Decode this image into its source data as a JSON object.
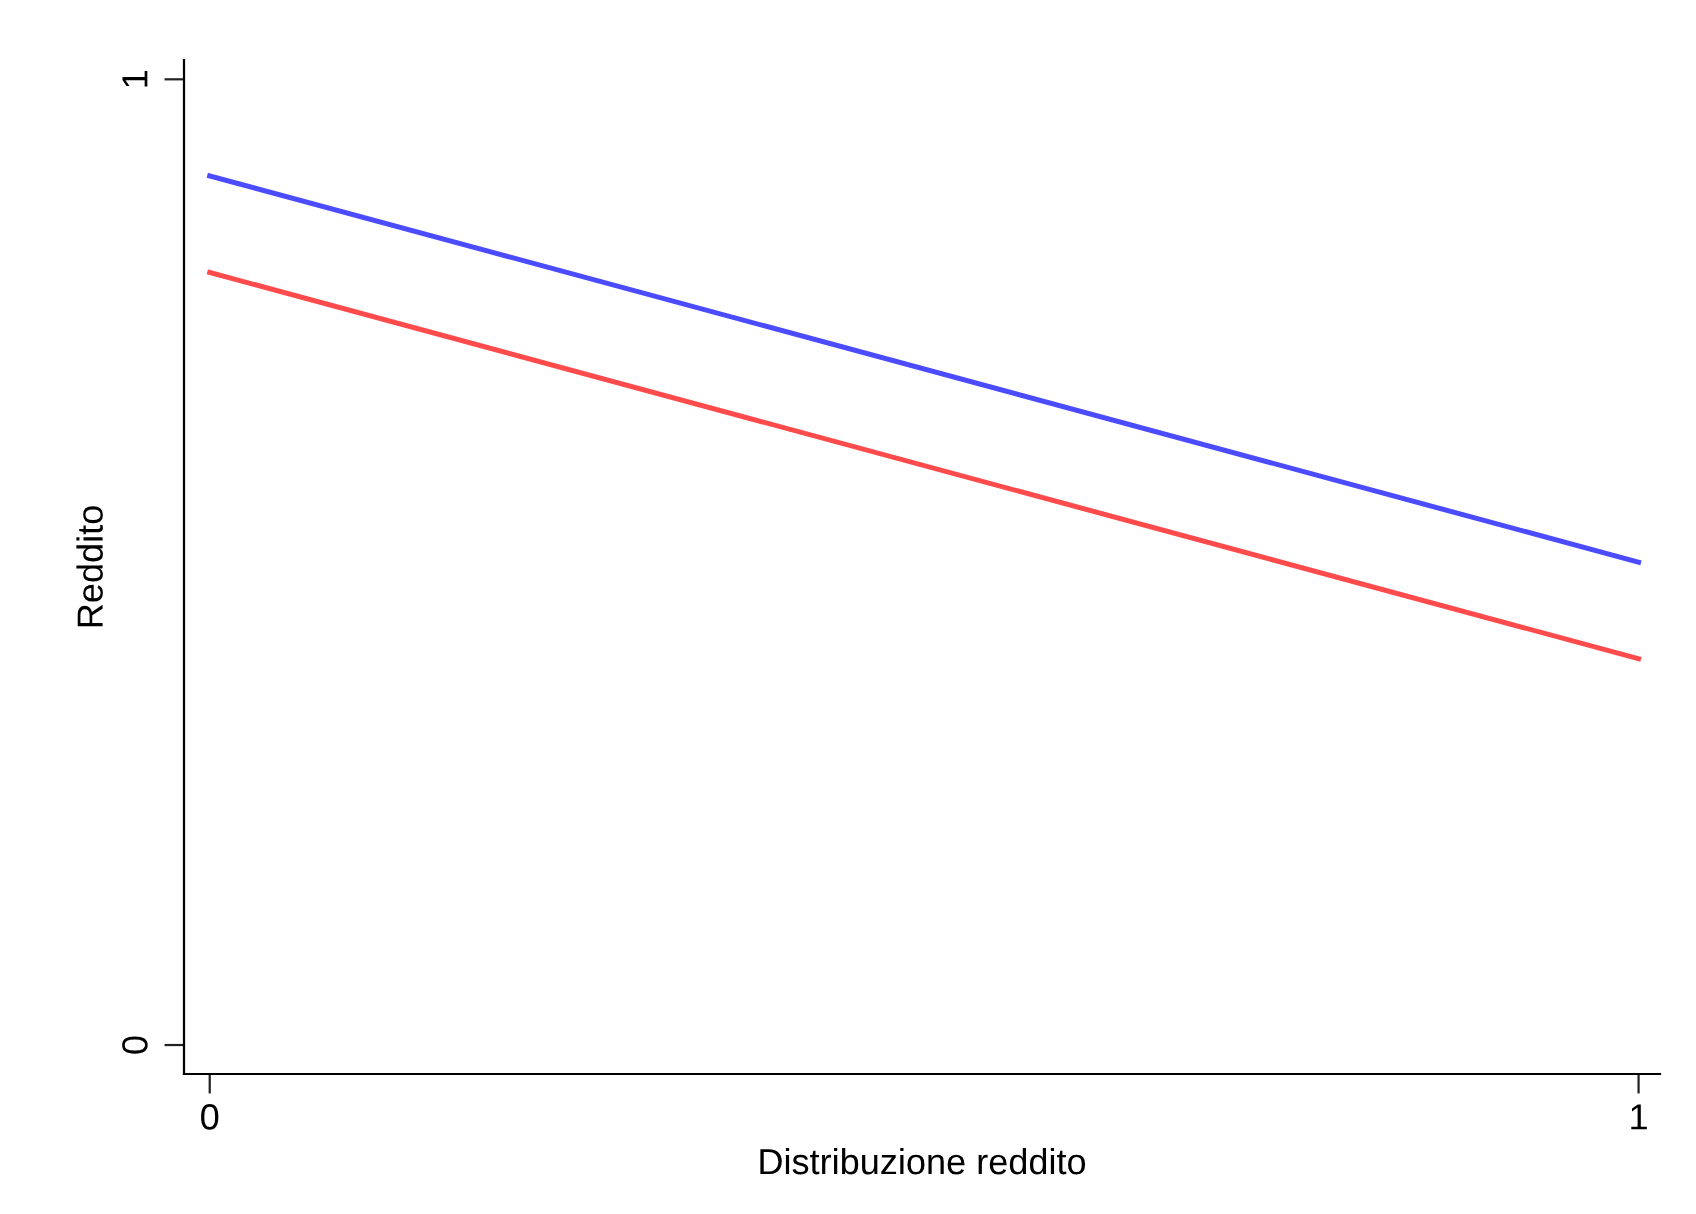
{
  "chart_data": {
    "type": "line",
    "xlabel": "Distribuzione reddito",
    "ylabel": "Reddito",
    "x": [
      0,
      1
    ],
    "series": [
      {
        "color": "#4b4bff",
        "values": [
          0.9,
          0.5
        ]
      },
      {
        "color": "#ff4b4b",
        "values": [
          0.8,
          0.4
        ]
      }
    ],
    "xlim": [
      -0.018,
      1.015
    ],
    "ylim": [
      -0.03,
      1.02
    ],
    "xticks": [
      0,
      1
    ],
    "yticks": [
      0,
      1
    ],
    "grid": false,
    "line_style": "solid",
    "marker": "none"
  }
}
